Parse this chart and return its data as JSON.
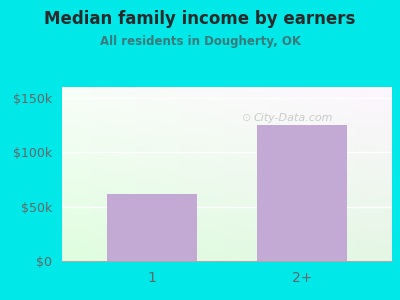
{
  "title": "Median family income by earners",
  "subtitle": "All residents in Dougherty, OK",
  "categories": [
    "1",
    "2+"
  ],
  "values": [
    62000,
    125000
  ],
  "bar_color": "#c2aad4",
  "background_color": "#00e8e8",
  "title_color": "#2a2a2a",
  "subtitle_color": "#3a7a7a",
  "tick_color": "#666666",
  "ylim": [
    0,
    160000
  ],
  "yticks": [
    0,
    50000,
    100000,
    150000
  ],
  "ytick_labels": [
    "$0",
    "$50k",
    "$100k",
    "$150k"
  ],
  "watermark": "City-Data.com",
  "watermark_color": "#bbbbbb",
  "grid_color": "#dddddd"
}
